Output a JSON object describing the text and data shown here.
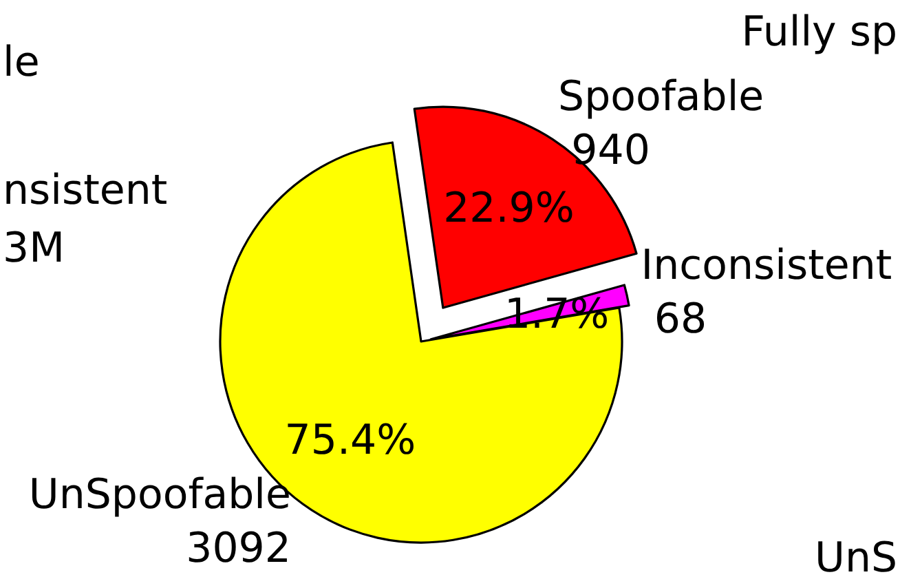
{
  "chart_data": {
    "type": "pie",
    "categories": [
      "Spoofable",
      "Inconsistent",
      "UnSpoofable"
    ],
    "values": [
      940,
      68,
      3092
    ],
    "colors": [
      "#ff0000",
      "#ff00ff",
      "#ffff00"
    ],
    "value_labels": [
      "940",
      "68",
      "3092"
    ],
    "annotations": [
      {
        "text": "22.9%",
        "x": "Spoofable"
      },
      {
        "text": "1.7%",
        "x": "Inconsistent"
      },
      {
        "text": "75.4%",
        "x": "UnSpoofable"
      },
      "le",
      "nsistent",
      "3M",
      "Fully sp",
      "UnS"
    ]
  }
}
